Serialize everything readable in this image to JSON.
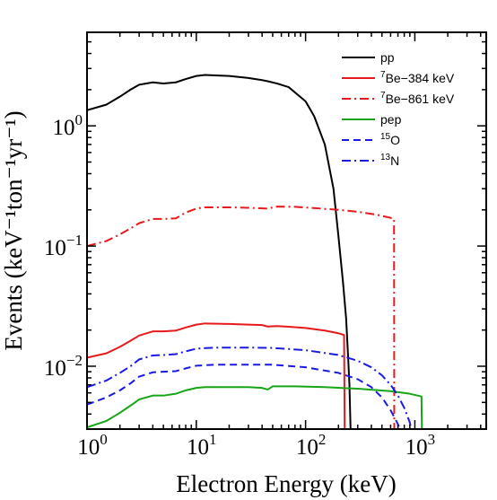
{
  "chart_data": {
    "type": "line",
    "title": "",
    "xlabel": "Electron Energy (keV)",
    "ylabel": "Events (keV⁻¹ton⁻¹yr⁻¹)",
    "x_scale": "log",
    "y_scale": "log",
    "xlim": [
      1,
      4500
    ],
    "ylim": [
      0.003,
      6.0
    ],
    "x_ticks": [
      {
        "value": 1,
        "base": "10",
        "exp": "0"
      },
      {
        "value": 10,
        "base": "10",
        "exp": "1"
      },
      {
        "value": 100,
        "base": "10",
        "exp": "2"
      },
      {
        "value": 1000,
        "base": "10",
        "exp": "3"
      }
    ],
    "y_ticks": [
      {
        "value": 0.01,
        "base": "10",
        "exp": "−2"
      },
      {
        "value": 0.1,
        "base": "10",
        "exp": "−1"
      },
      {
        "value": 1,
        "base": "10",
        "exp": "0"
      }
    ],
    "grid": false,
    "legend_position": "top-right",
    "series": [
      {
        "name": "pp",
        "legend": {
          "sup": "",
          "text": "pp"
        },
        "color": "#000000",
        "dash": "solid",
        "points": [
          [
            1,
            1.35
          ],
          [
            1.5,
            1.5
          ],
          [
            2,
            1.75
          ],
          [
            2.5,
            2.0
          ],
          [
            3,
            2.2
          ],
          [
            4,
            2.3
          ],
          [
            5,
            2.25
          ],
          [
            6.5,
            2.3
          ],
          [
            8,
            2.45
          ],
          [
            10,
            2.6
          ],
          [
            12,
            2.65
          ],
          [
            20,
            2.6
          ],
          [
            30,
            2.5
          ],
          [
            40,
            2.4
          ],
          [
            45,
            2.35
          ],
          [
            55,
            2.25
          ],
          [
            70,
            2.1
          ],
          [
            100,
            1.6
          ],
          [
            120,
            1.2
          ],
          [
            150,
            0.7
          ],
          [
            180,
            0.3
          ],
          [
            200,
            0.12
          ],
          [
            220,
            0.05
          ],
          [
            235,
            0.025
          ],
          [
            245,
            0.012
          ],
          [
            252,
            0.007
          ],
          [
            258,
            0.003
          ]
        ]
      },
      {
        "name": "7Be-384 keV",
        "legend": {
          "sup": "7",
          "text": "Be−384 keV"
        },
        "color": "#e8191b",
        "dash": "solid",
        "points": [
          [
            1,
            0.0118
          ],
          [
            1.5,
            0.0128
          ],
          [
            2,
            0.0145
          ],
          [
            2.5,
            0.0163
          ],
          [
            3,
            0.018
          ],
          [
            4,
            0.0195
          ],
          [
            5,
            0.0195
          ],
          [
            6.5,
            0.0198
          ],
          [
            8,
            0.021
          ],
          [
            10,
            0.0222
          ],
          [
            12,
            0.0227
          ],
          [
            20,
            0.0225
          ],
          [
            30,
            0.0222
          ],
          [
            40,
            0.022
          ],
          [
            45,
            0.0214
          ],
          [
            55,
            0.0216
          ],
          [
            70,
            0.0213
          ],
          [
            100,
            0.0208
          ],
          [
            150,
            0.0198
          ],
          [
            200,
            0.0188
          ],
          [
            225,
            0.0182
          ],
          [
            228,
            0.003
          ]
        ]
      },
      {
        "name": "7Be-861 keV",
        "legend": {
          "sup": "7",
          "text": "Be−861 keV"
        },
        "color": "#e8191b",
        "dash": "dashdot",
        "points": [
          [
            1,
            0.1
          ],
          [
            1.5,
            0.11
          ],
          [
            2,
            0.125
          ],
          [
            2.5,
            0.14
          ],
          [
            3,
            0.155
          ],
          [
            4,
            0.168
          ],
          [
            5,
            0.168
          ],
          [
            6.5,
            0.17
          ],
          [
            8,
            0.19
          ],
          [
            10,
            0.205
          ],
          [
            12,
            0.21
          ],
          [
            20,
            0.21
          ],
          [
            30,
            0.208
          ],
          [
            45,
            0.205
          ],
          [
            55,
            0.213
          ],
          [
            80,
            0.212
          ],
          [
            120,
            0.207
          ],
          [
            200,
            0.2
          ],
          [
            300,
            0.193
          ],
          [
            450,
            0.182
          ],
          [
            580,
            0.173
          ],
          [
            645,
            0.168
          ],
          [
            648,
            0.003
          ]
        ]
      },
      {
        "name": "pep",
        "legend": {
          "sup": "",
          "text": "pep"
        },
        "color": "#16a516",
        "dash": "solid",
        "points": [
          [
            1,
            0.0031
          ],
          [
            1.5,
            0.0035
          ],
          [
            2,
            0.0041
          ],
          [
            2.5,
            0.0047
          ],
          [
            3,
            0.0053
          ],
          [
            4,
            0.0057
          ],
          [
            5,
            0.0057
          ],
          [
            6.5,
            0.0059
          ],
          [
            8,
            0.0063
          ],
          [
            10,
            0.0066
          ],
          [
            12,
            0.0067
          ],
          [
            20,
            0.0067
          ],
          [
            30,
            0.0067
          ],
          [
            40,
            0.0066
          ],
          [
            45,
            0.0064
          ],
          [
            50,
            0.0068
          ],
          [
            80,
            0.0068
          ],
          [
            150,
            0.0067
          ],
          [
            300,
            0.0065
          ],
          [
            600,
            0.0062
          ],
          [
            900,
            0.0059
          ],
          [
            1150,
            0.0056
          ],
          [
            1160,
            0.003
          ]
        ]
      },
      {
        "name": "15O",
        "legend": {
          "sup": "15",
          "text": "O"
        },
        "color": "#1a1ae6",
        "dash": "dashed",
        "points": [
          [
            1,
            0.0048
          ],
          [
            1.5,
            0.0055
          ],
          [
            2,
            0.0063
          ],
          [
            2.5,
            0.0072
          ],
          [
            3,
            0.0082
          ],
          [
            4,
            0.0089
          ],
          [
            5,
            0.009
          ],
          [
            6.5,
            0.0091
          ],
          [
            8,
            0.0096
          ],
          [
            10,
            0.0101
          ],
          [
            15,
            0.0103
          ],
          [
            30,
            0.0103
          ],
          [
            50,
            0.0103
          ],
          [
            100,
            0.0098
          ],
          [
            200,
            0.0088
          ],
          [
            300,
            0.0078
          ],
          [
            400,
            0.0067
          ],
          [
            500,
            0.0055
          ],
          [
            600,
            0.0043
          ],
          [
            700,
            0.0033
          ],
          [
            760,
            0.0027
          ]
        ]
      },
      {
        "name": "13N",
        "legend": {
          "sup": "13",
          "text": "N"
        },
        "color": "#1a1ae6",
        "dash": "dashdot",
        "points": [
          [
            1,
            0.0067
          ],
          [
            1.5,
            0.0076
          ],
          [
            2,
            0.0088
          ],
          [
            2.5,
            0.01
          ],
          [
            3,
            0.0114
          ],
          [
            4,
            0.0123
          ],
          [
            5,
            0.0124
          ],
          [
            6.5,
            0.0126
          ],
          [
            8,
            0.0133
          ],
          [
            10,
            0.014
          ],
          [
            15,
            0.0143
          ],
          [
            30,
            0.0143
          ],
          [
            50,
            0.0142
          ],
          [
            100,
            0.0136
          ],
          [
            200,
            0.0124
          ],
          [
            300,
            0.0111
          ],
          [
            400,
            0.0098
          ],
          [
            500,
            0.0084
          ],
          [
            600,
            0.007
          ],
          [
            700,
            0.0057
          ],
          [
            800,
            0.0045
          ],
          [
            900,
            0.0034
          ],
          [
            930,
            0.0029
          ]
        ]
      }
    ]
  }
}
